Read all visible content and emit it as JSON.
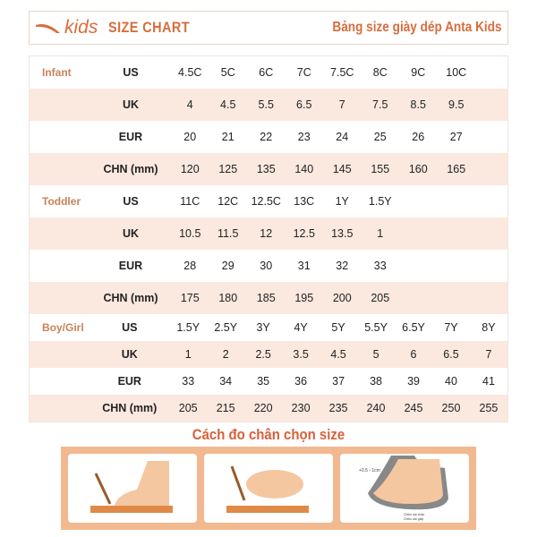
{
  "header": {
    "brand": "kids",
    "title": "SIZE CHART",
    "subtitle": "Bảng size giày dép Anta Kids"
  },
  "groups": [
    {
      "name": "Infant",
      "rows": [
        {
          "type": "US",
          "values": [
            "4.5C",
            "5C",
            "6C",
            "7C",
            "7.5C",
            "8C",
            "9C",
            "10C"
          ]
        },
        {
          "type": "UK",
          "values": [
            "4",
            "4.5",
            "5.5",
            "6.5",
            "7",
            "7.5",
            "8.5",
            "9.5"
          ]
        },
        {
          "type": "EUR",
          "values": [
            "20",
            "21",
            "22",
            "23",
            "24",
            "25",
            "26",
            "27"
          ]
        },
        {
          "type": "CHN (mm)",
          "values": [
            "120",
            "125",
            "135",
            "140",
            "145",
            "155",
            "160",
            "165"
          ]
        }
      ]
    },
    {
      "name": "Toddler",
      "rows": [
        {
          "type": "US",
          "values": [
            "11C",
            "12C",
            "12.5C",
            "13C",
            "1Y",
            "1.5Y"
          ]
        },
        {
          "type": "UK",
          "values": [
            "10.5",
            "11.5",
            "12",
            "12.5",
            "13.5",
            "1"
          ]
        },
        {
          "type": "EUR",
          "values": [
            "28",
            "29",
            "30",
            "31",
            "32",
            "33"
          ]
        },
        {
          "type": "CHN (mm)",
          "values": [
            "175",
            "180",
            "185",
            "195",
            "200",
            "205"
          ]
        }
      ]
    },
    {
      "name": "Boy/Girl",
      "rows": [
        {
          "type": "US",
          "values": [
            "1.5Y",
            "2.5Y",
            "3Y",
            "4Y",
            "5Y",
            "5.5Y",
            "6.5Y",
            "7Y",
            "8Y"
          ]
        },
        {
          "type": "UK",
          "values": [
            "1",
            "2",
            "2.5",
            "3.5",
            "4.5",
            "5",
            "6",
            "6.5",
            "7"
          ]
        },
        {
          "type": "EUR",
          "values": [
            "33",
            "34",
            "35",
            "36",
            "37",
            "38",
            "39",
            "40",
            "41"
          ]
        },
        {
          "type": "CHN (mm)",
          "values": [
            "205",
            "215",
            "220",
            "230",
            "235",
            "240",
            "245",
            "250",
            "255"
          ]
        }
      ]
    }
  ],
  "guide": {
    "title": "Cách đo chân chọn size",
    "note": "+0.5 - 1cm",
    "foot_length": "Chiều dài chân",
    "shoe_length": "Chiều dài giày"
  },
  "colors": {
    "accent": "#d86d3c",
    "row_alt": "#fbe9df",
    "panel": "#f2b88f"
  }
}
